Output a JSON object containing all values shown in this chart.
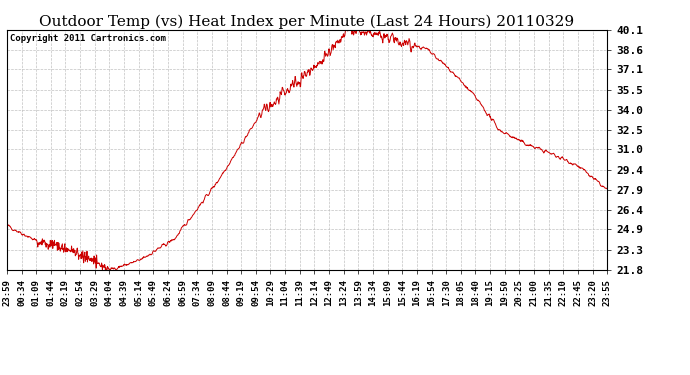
{
  "title": "Outdoor Temp (vs) Heat Index per Minute (Last 24 Hours) 20110329",
  "copyright_text": "Copyright 2011 Cartronics.com",
  "line_color": "#cc0000",
  "background_color": "#ffffff",
  "plot_bg_color": "#ffffff",
  "grid_color": "#bbbbbb",
  "ylim": [
    21.8,
    40.1
  ],
  "yticks": [
    21.8,
    23.3,
    24.9,
    26.4,
    27.9,
    29.4,
    31.0,
    32.5,
    34.0,
    35.5,
    37.1,
    38.6,
    40.1
  ],
  "xtick_labels": [
    "23:59",
    "00:34",
    "01:09",
    "01:44",
    "02:19",
    "02:54",
    "03:29",
    "04:04",
    "04:39",
    "05:14",
    "05:49",
    "06:24",
    "06:59",
    "07:34",
    "08:09",
    "08:44",
    "09:19",
    "09:54",
    "10:29",
    "11:04",
    "11:39",
    "12:14",
    "12:49",
    "13:24",
    "13:59",
    "14:34",
    "15:09",
    "15:44",
    "16:19",
    "16:54",
    "17:30",
    "18:05",
    "18:40",
    "19:15",
    "19:50",
    "20:25",
    "21:00",
    "21:35",
    "22:10",
    "22:45",
    "23:20",
    "23:55"
  ],
  "title_fontsize": 11,
  "copyright_fontsize": 6.5,
  "tick_fontsize": 6.5,
  "ytick_fontsize": 8,
  "keypoints_t": [
    0,
    0.025,
    0.05,
    0.08,
    0.1,
    0.13,
    0.17,
    0.22,
    0.28,
    0.35,
    0.42,
    0.48,
    0.54,
    0.57,
    0.6,
    0.63,
    0.66,
    0.7,
    0.74,
    0.78,
    0.82,
    0.86,
    0.9,
    0.95,
    1.0
  ],
  "keypoints_v": [
    25.2,
    24.6,
    24.0,
    23.7,
    23.4,
    22.8,
    21.8,
    22.5,
    24.2,
    28.5,
    33.5,
    36.0,
    38.5,
    40.1,
    39.8,
    39.5,
    39.2,
    38.6,
    37.0,
    35.0,
    32.5,
    31.5,
    30.8,
    29.8,
    27.9
  ]
}
